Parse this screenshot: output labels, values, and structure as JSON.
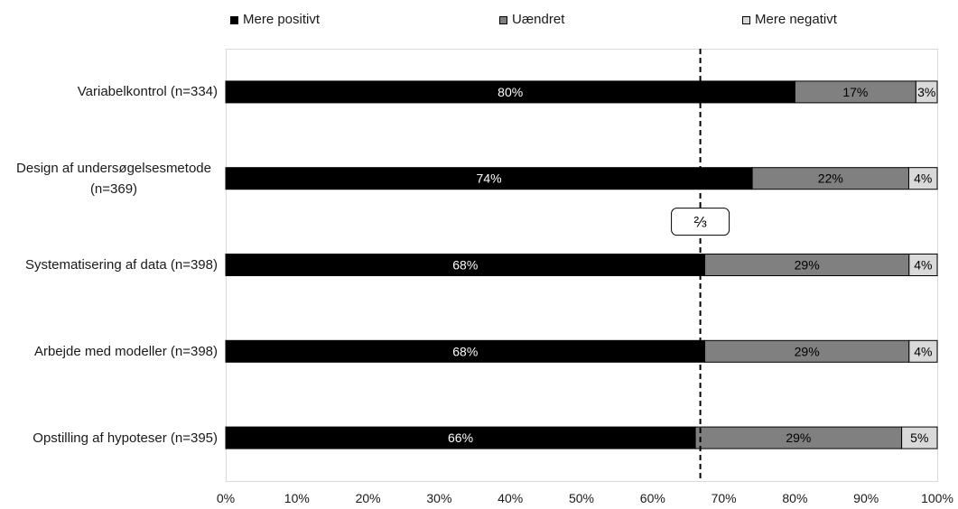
{
  "chart_data": {
    "type": "bar",
    "orientation": "horizontal",
    "stacked": true,
    "categories": [
      "Variabelkontrol (n=334)",
      "Design af undersøgelsesmetode (n=369)",
      "Systematisering af data (n=398)",
      "Arbejde med modeller (n=398)",
      "Opstilling af hypoteser (n=395)"
    ],
    "series": [
      {
        "name": "Mere positivt",
        "color": "#000000",
        "label_color": "#ffffff",
        "values": [
          80,
          74,
          68,
          68,
          66
        ],
        "labels": [
          "80%",
          "74%",
          "68%",
          "68%",
          "66%"
        ]
      },
      {
        "name": "Uændret",
        "color": "#808080",
        "label_color": "#000000",
        "values": [
          17,
          22,
          29,
          29,
          29
        ],
        "labels": [
          "17%",
          "22%",
          "29%",
          "29%",
          "29%"
        ]
      },
      {
        "name": "Mere negativt",
        "color": "#d9d9d9",
        "label_color": "#000000",
        "values": [
          3,
          4,
          4,
          4,
          5
        ],
        "labels": [
          "3%",
          "4%",
          "4%",
          "4%",
          "5%"
        ]
      }
    ],
    "xlim": [
      0,
      100
    ],
    "x_ticks": [
      0,
      10,
      20,
      30,
      40,
      50,
      60,
      70,
      80,
      90,
      100
    ],
    "x_tick_labels": [
      "0%",
      "10%",
      "20%",
      "30%",
      "40%",
      "50%",
      "60%",
      "70%",
      "80%",
      "90%",
      "100%"
    ],
    "grid": false,
    "legend_position": "top",
    "reference_line": {
      "axis": "x",
      "value": 66.7,
      "style": "dashed",
      "color": "#000000",
      "label": "⅔"
    }
  }
}
